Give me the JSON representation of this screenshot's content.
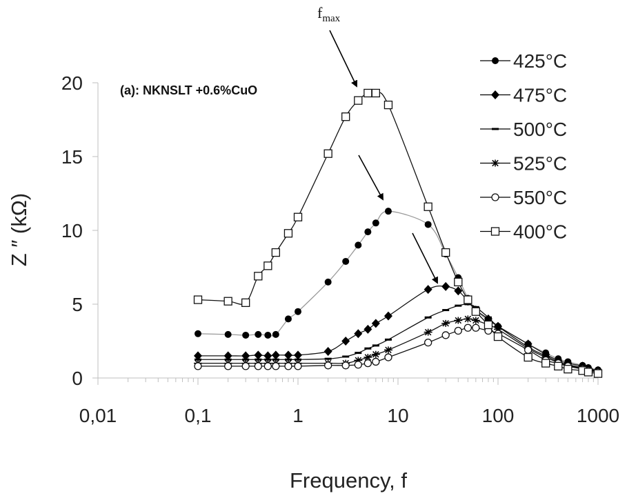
{
  "chart_data": {
    "type": "line",
    "title": "",
    "annotation": "(a): NKNSLT +0.6%CuO",
    "peak_label": "f",
    "peak_label_sub": "max",
    "xlabel": "Frequency, f",
    "ylabel": "Z ″ (kΩ)",
    "x_scale": "log",
    "xlim": [
      0.01,
      1000
    ],
    "ylim": [
      0,
      20
    ],
    "x_ticks": [
      0.01,
      0.1,
      1,
      10,
      100,
      1000
    ],
    "x_tick_labels": [
      "0,01",
      "0,1",
      "1",
      "10",
      "100",
      "1000"
    ],
    "y_ticks": [
      0,
      5,
      10,
      15,
      20
    ],
    "y_tick_labels": [
      "0",
      "5",
      "10",
      "15",
      "20"
    ],
    "grid": false,
    "legend_position": "right",
    "series": [
      {
        "name": "425°C",
        "marker": "circle-filled",
        "line_color": "#9a9a9a",
        "x": [
          0.1,
          0.2,
          0.3,
          0.4,
          0.5,
          0.6,
          0.8,
          1,
          2,
          3,
          4,
          5,
          6,
          8,
          20,
          30,
          40,
          50,
          60,
          80,
          100,
          200,
          300,
          400,
          500,
          700,
          800,
          1000
        ],
        "y": [
          3.0,
          2.95,
          2.9,
          2.95,
          2.9,
          2.95,
          4.0,
          4.5,
          6.5,
          7.9,
          9.0,
          9.9,
          10.5,
          11.3,
          10.4,
          8.4,
          6.8,
          5.4,
          4.6,
          3.9,
          3.5,
          2.3,
          1.7,
          1.3,
          1.1,
          0.85,
          0.7,
          0.55
        ]
      },
      {
        "name": "475°C",
        "marker": "diamond-filled",
        "line_color": "#111111",
        "x": [
          0.1,
          0.2,
          0.3,
          0.4,
          0.5,
          0.6,
          0.8,
          1,
          2,
          3,
          4,
          5,
          6,
          8,
          20,
          30,
          40,
          50,
          60,
          80,
          100,
          200,
          300,
          400,
          500,
          700,
          800,
          1000
        ],
        "y": [
          1.5,
          1.5,
          1.5,
          1.55,
          1.5,
          1.55,
          1.55,
          1.55,
          1.8,
          2.5,
          3.0,
          3.3,
          3.7,
          4.2,
          6.0,
          6.2,
          5.9,
          5.2,
          4.6,
          4.0,
          3.5,
          2.3,
          1.6,
          1.2,
          1.0,
          0.8,
          0.65,
          0.5
        ]
      },
      {
        "name": "500°C",
        "marker": "dash",
        "line_color": "#111111",
        "x": [
          0.1,
          0.2,
          0.3,
          0.4,
          0.5,
          0.6,
          0.8,
          1,
          2,
          3,
          4,
          5,
          6,
          8,
          20,
          30,
          40,
          50,
          60,
          80,
          100,
          200,
          300,
          400,
          500,
          700,
          800,
          1000
        ],
        "y": [
          1.25,
          1.25,
          1.25,
          1.25,
          1.25,
          1.25,
          1.25,
          1.25,
          1.3,
          1.45,
          1.7,
          2.0,
          2.2,
          2.6,
          4.1,
          4.6,
          4.9,
          5.0,
          4.8,
          4.1,
          3.5,
          2.1,
          1.5,
          1.1,
          0.9,
          0.7,
          0.6,
          0.45
        ]
      },
      {
        "name": "525°C",
        "marker": "asterisk",
        "line_color": "#111111",
        "x": [
          0.1,
          0.2,
          0.3,
          0.4,
          0.5,
          0.6,
          0.8,
          1,
          2,
          3,
          4,
          5,
          6,
          8,
          20,
          30,
          40,
          50,
          60,
          80,
          100,
          200,
          300,
          400,
          500,
          700,
          800,
          1000
        ],
        "y": [
          1.0,
          1.0,
          1.0,
          1.0,
          1.0,
          1.0,
          1.0,
          1.0,
          1.0,
          1.0,
          1.2,
          1.4,
          1.6,
          1.9,
          3.1,
          3.7,
          3.9,
          4.0,
          3.9,
          3.6,
          3.3,
          2.0,
          1.4,
          1.05,
          0.85,
          0.65,
          0.55,
          0.42
        ]
      },
      {
        "name": "550°C",
        "marker": "circle-open",
        "line_color": "#111111",
        "x": [
          0.1,
          0.2,
          0.3,
          0.4,
          0.5,
          0.6,
          0.8,
          1,
          2,
          3,
          4,
          5,
          6,
          8,
          20,
          30,
          40,
          50,
          60,
          80,
          100,
          200,
          300,
          400,
          500,
          700,
          800,
          1000
        ],
        "y": [
          0.8,
          0.8,
          0.8,
          0.8,
          0.8,
          0.8,
          0.8,
          0.8,
          0.85,
          0.85,
          0.9,
          1.0,
          1.1,
          1.4,
          2.4,
          2.9,
          3.2,
          3.4,
          3.4,
          3.2,
          3.0,
          1.9,
          1.2,
          1.0,
          0.8,
          0.6,
          0.5,
          0.4
        ]
      },
      {
        "name": "400°C",
        "marker": "square-open",
        "line_color": "#111111",
        "x": [
          0.1,
          0.2,
          0.3,
          0.4,
          0.5,
          0.6,
          0.8,
          1,
          2,
          3,
          4,
          5,
          6,
          8,
          20,
          30,
          40,
          50,
          60,
          80,
          100,
          200,
          300,
          400,
          500,
          700,
          800,
          1000
        ],
        "y": [
          5.3,
          5.2,
          5.1,
          6.9,
          7.6,
          8.5,
          9.8,
          10.9,
          15.2,
          17.7,
          18.8,
          19.3,
          19.3,
          18.5,
          11.6,
          8.5,
          6.5,
          5.3,
          4.5,
          3.6,
          2.8,
          1.4,
          1.0,
          0.8,
          0.6,
          0.5,
          0.4,
          0.3
        ]
      }
    ]
  }
}
